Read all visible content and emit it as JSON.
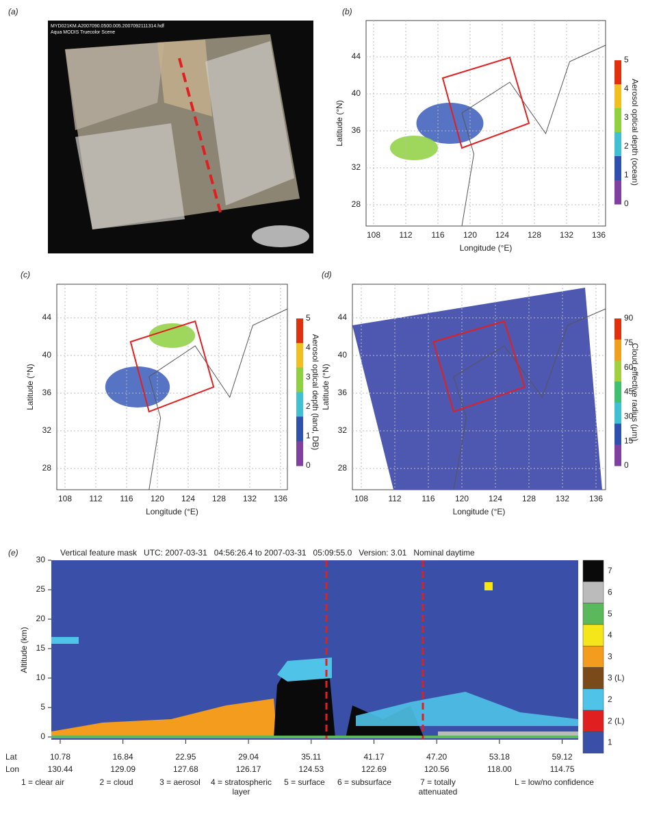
{
  "panels": [
    {
      "label": "(a)",
      "image_text": [
        "MYD021KM.A2007090.0500.005.2007092111314.hdf",
        "Aqua MODIS Truecolor Scene"
      ]
    },
    {
      "label": "(b)",
      "y_label": "Latitude (°N)",
      "x_label": "Longitude (°E)",
      "x_ticks": [
        108,
        112,
        116,
        120,
        124,
        128,
        132,
        136
      ],
      "y_ticks": [
        44,
        40,
        36,
        32,
        28
      ],
      "colorbar_label": "Aerosol optical depth (ocean)",
      "colorbar_ticks": [
        5,
        4,
        3,
        2,
        1,
        0
      ]
    },
    {
      "label": "(c)",
      "y_label": "Latitude (°N)",
      "x_label": "Longitude (°E)",
      "x_ticks": [
        108,
        112,
        116,
        120,
        124,
        128,
        132,
        136
      ],
      "y_ticks": [
        44,
        40,
        36,
        32,
        28
      ],
      "colorbar_label": "Aerosol optical depth (land, DB)",
      "colorbar_ticks": [
        5,
        4,
        3,
        2,
        1,
        0
      ]
    },
    {
      "label": "(d)",
      "y_label": "Latitude (°N)",
      "x_label": "Longitude (°E)",
      "x_ticks": [
        108,
        112,
        116,
        120,
        124,
        128,
        132,
        136
      ],
      "y_ticks": [
        44,
        40,
        36,
        32,
        28
      ],
      "colorbar_label": "Cloud effective radius (μm)",
      "colorbar_ticks": [
        90,
        75,
        60,
        45,
        30,
        15,
        0
      ]
    },
    {
      "label": "(e)",
      "title": "Vertical feature mask   UTC: 2007-03-31   04:56:26.4 to 2007-03-31   05:09:55.0   Version: 3.01   Nominal daytime",
      "y_label": "Altitude (km)",
      "y_ticks": [
        30,
        25,
        20,
        15,
        10,
        5,
        0
      ],
      "legend": [
        "7",
        "6",
        "5",
        "4",
        "3",
        "3 (L)",
        "2",
        "2 (L)",
        "1"
      ],
      "lat_label": "Lat",
      "lat": [
        "10.78",
        "16.84",
        "22.95",
        "29.04",
        "35.11",
        "41.17",
        "47.20",
        "53.18",
        "59.12"
      ],
      "lon_label": "Lon",
      "lon": [
        "130.44",
        "129.09",
        "127.68",
        "126.17",
        "124.53",
        "122.69",
        "120.56",
        "118.00",
        "114.75"
      ],
      "key": [
        "1 = clear air",
        "2 = cloud",
        "3 = aerosol",
        "4 = stratospheric layer",
        "5 = surface",
        "6 = subsurface",
        "7 = totally attenuated",
        "L = low/no confidence"
      ]
    }
  ]
}
